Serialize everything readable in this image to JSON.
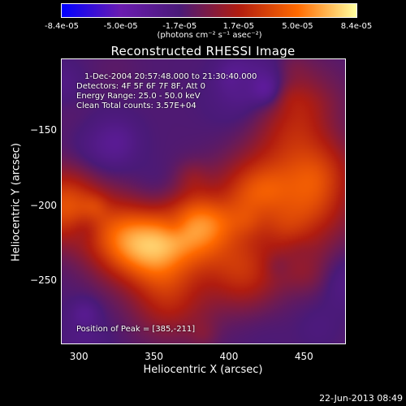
{
  "chart_data": {
    "type": "heatmap",
    "title": "Reconstructed RHESSI Image",
    "xlabel": "Heliocentric X (arcsec)",
    "ylabel": "Heliocentric Y (arcsec)",
    "xlim": [
      288,
      478
    ],
    "ylim": [
      -293,
      -102
    ],
    "x_ticks": [
      "300",
      "350",
      "400",
      "450"
    ],
    "y_ticks": [
      "-150",
      "-200",
      "-250"
    ],
    "colorbar": {
      "ticks": [
        "-8.4e-05",
        "-5.0e-05",
        "-1.7e-05",
        "1.7e-05",
        "5.0e-05",
        "8.4e-05"
      ],
      "units": "(photons cm⁻² s⁻¹ asec⁻²)",
      "min": -8.4e-05,
      "max": 8.4e-05,
      "colors": [
        "#0000ff",
        "#6a1cb0",
        "#4a1a78",
        "#b01c10",
        "#ff6a00",
        "#ffffa0"
      ]
    },
    "annotations": [
      "1-Dec-2004 20:57:48.000 to 21:30:40.000",
      "Detectors: 4F 5F 6F 7F 8F, Att 0",
      "Energy Range: 25.0 - 50.0 keV",
      "Clean     Total counts: 3.57E+04"
    ],
    "peak_label": "Position of Peak = [385,-211]",
    "peak": [
      385,
      -211
    ],
    "sources": [
      {
        "x": 385,
        "y": -211,
        "v": 8.4e-05
      },
      {
        "x": 355,
        "y": -230,
        "v": 7.5e-05
      },
      {
        "x": 330,
        "y": -220,
        "v": 6e-05
      },
      {
        "x": 290,
        "y": -200,
        "v": 7e-05
      },
      {
        "x": 420,
        "y": -190,
        "v": 6e-05
      },
      {
        "x": 460,
        "y": -180,
        "v": 5.5e-05
      },
      {
        "x": 450,
        "y": -215,
        "v": 5e-05
      },
      {
        "x": 410,
        "y": -245,
        "v": 5e-05
      },
      {
        "x": 360,
        "y": -265,
        "v": 4e-05
      },
      {
        "x": 440,
        "y": -150,
        "v": 3.5e-05
      }
    ]
  },
  "footer_date": "22-Jun-2013 08:49"
}
